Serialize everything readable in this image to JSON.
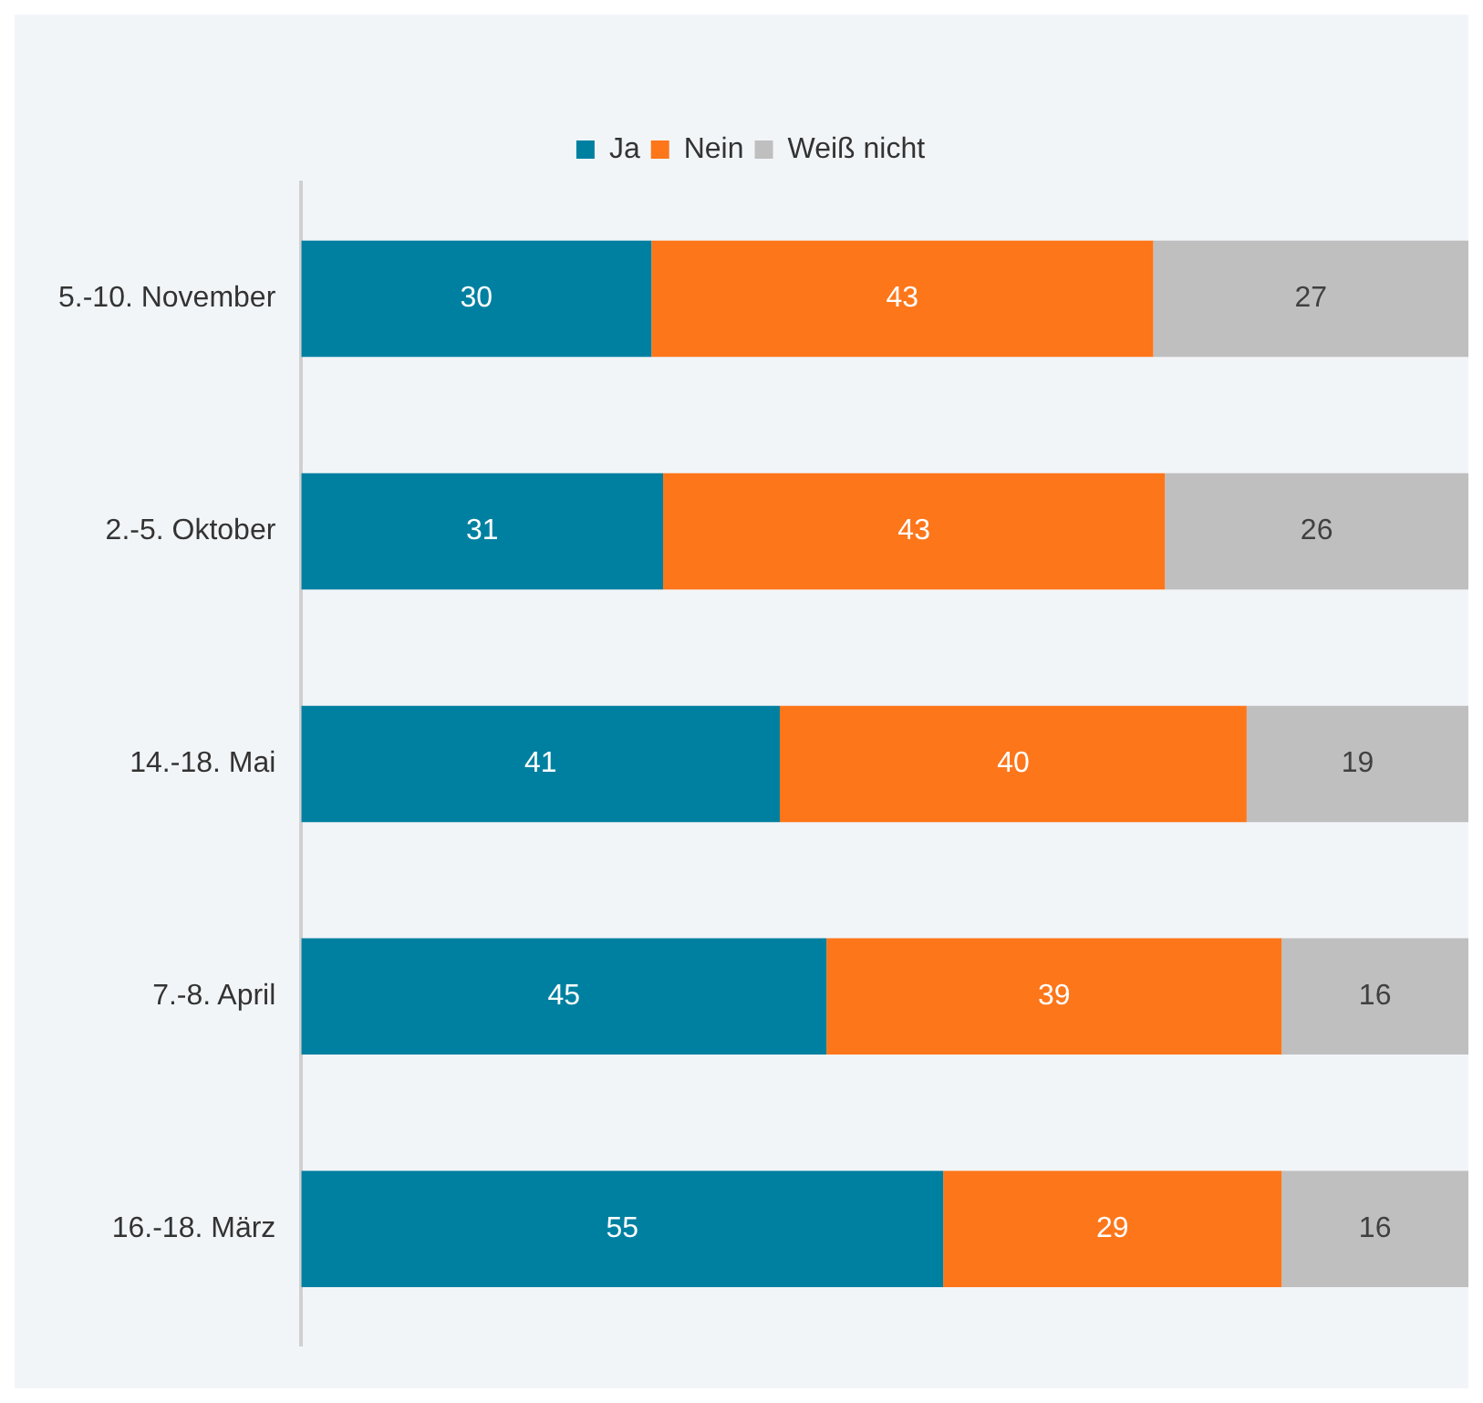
{
  "chart_data": {
    "type": "bar",
    "orientation": "horizontal",
    "stacked": true,
    "categories": [
      "5.-10. November",
      "2.-5. Oktober",
      "14.-18. Mai",
      "7.-8. April",
      "16.-18. März"
    ],
    "series": [
      {
        "name": "Ja",
        "color": "#0080a1",
        "values": [
          30,
          31,
          41,
          45,
          55
        ]
      },
      {
        "name": "Nein",
        "color": "#fd761a",
        "values": [
          43,
          43,
          40,
          39,
          29
        ]
      },
      {
        "name": "Weiß nicht",
        "color": "#bfbfbf",
        "values": [
          27,
          26,
          19,
          16,
          16
        ]
      }
    ],
    "xlim": [
      0,
      100
    ],
    "tick_labels": "y",
    "data_labels": true,
    "legend": "top",
    "grid": false
  }
}
